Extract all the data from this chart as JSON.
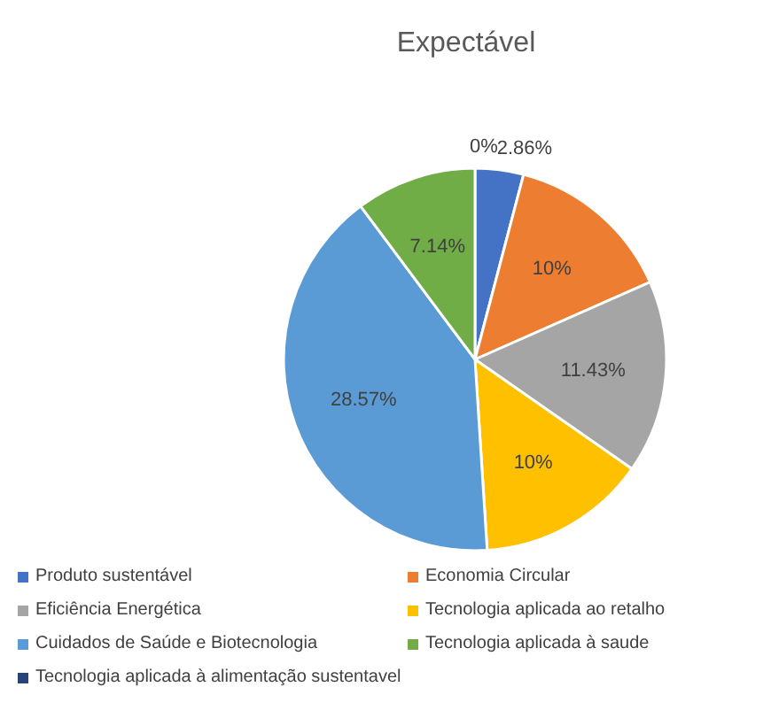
{
  "chart_data": {
    "type": "pie",
    "title": "Expectável",
    "categories": [
      "Produto sustentável",
      "Economia Circular",
      "Eficiência Energética",
      "Tecnologia aplicada ao retalho",
      "Cuidados de Saúde e Biotecnologia",
      "Tecnologia aplicada à saude",
      "Tecnologia aplicada à alimentação sustentavel"
    ],
    "values": [
      2.86,
      10,
      11.43,
      10,
      28.57,
      7.14,
      0
    ],
    "value_labels": [
      "2.86%",
      "10%",
      "11.43%",
      "10%",
      "28.57%",
      "7.14%",
      "0%"
    ],
    "colors": [
      "#4472c4",
      "#ed7d31",
      "#a5a5a5",
      "#ffc000",
      "#5b9bd5",
      "#70ad47",
      "#264478"
    ],
    "legend": "bottom"
  }
}
